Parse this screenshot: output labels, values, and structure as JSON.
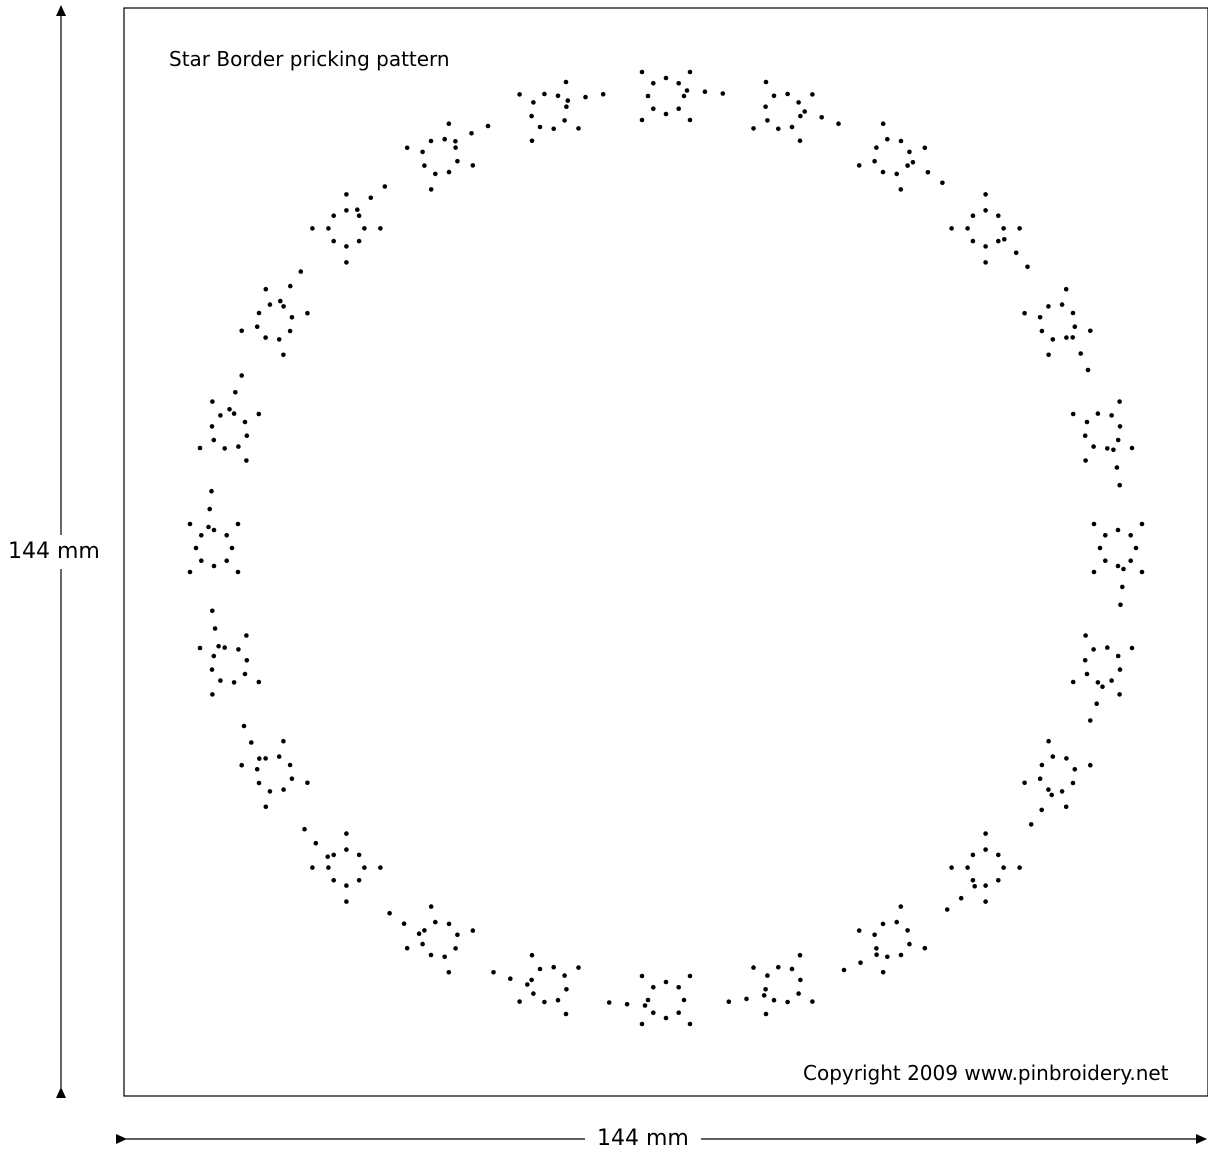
{
  "pattern": {
    "title": "Star Border pricking pattern",
    "copyright": "Copyright 2009 www.pinbroidery.net",
    "motif_count": 24,
    "motif_name": "star"
  },
  "dimensions": {
    "height_label": "144 mm",
    "width_label": "144 mm"
  },
  "colors": {
    "background": "#ffffff",
    "ink": "#000000"
  }
}
